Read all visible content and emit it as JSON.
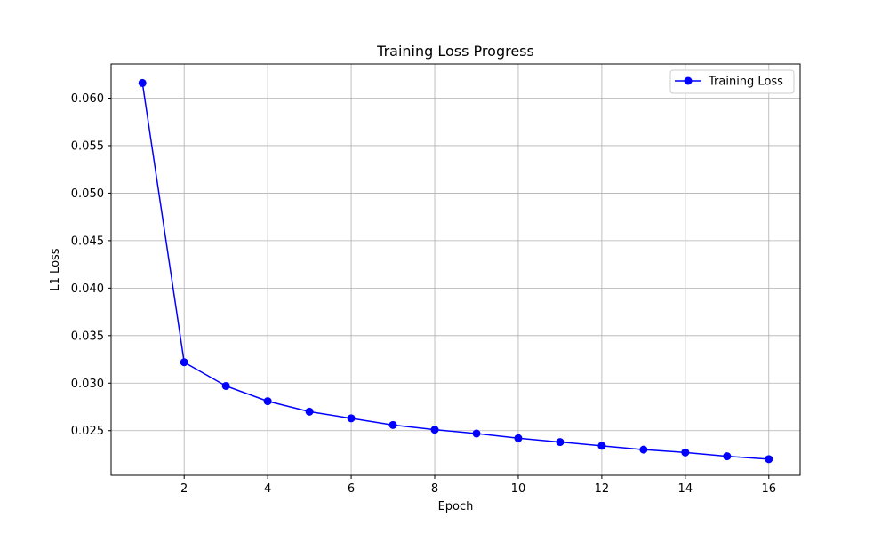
{
  "chart_data": {
    "type": "line",
    "title": "Training Loss Progress",
    "xlabel": "Epoch",
    "ylabel": "L1 Loss",
    "xlim": [
      0.25,
      16.75
    ],
    "ylim": [
      0.0203,
      0.0636
    ],
    "x_ticks": [
      2,
      4,
      6,
      8,
      10,
      12,
      14,
      16
    ],
    "x_tick_labels": [
      "2",
      "4",
      "6",
      "8",
      "10",
      "12",
      "14",
      "16"
    ],
    "y_ticks": [
      0.025,
      0.03,
      0.035,
      0.04,
      0.045,
      0.05,
      0.055,
      0.06
    ],
    "y_tick_labels": [
      "0.025",
      "0.030",
      "0.035",
      "0.040",
      "0.045",
      "0.050",
      "0.055",
      "0.060"
    ],
    "grid": true,
    "legend_position": "top-right",
    "series": [
      {
        "name": "Training Loss",
        "color": "#0000ff",
        "marker": "circle",
        "x": [
          1,
          2,
          3,
          4,
          5,
          6,
          7,
          8,
          9,
          10,
          11,
          12,
          13,
          14,
          15,
          16
        ],
        "y": [
          0.0616,
          0.0322,
          0.0297,
          0.0281,
          0.027,
          0.0263,
          0.0256,
          0.0251,
          0.0247,
          0.0242,
          0.0238,
          0.0234,
          0.023,
          0.0227,
          0.0223,
          0.022
        ]
      }
    ]
  }
}
